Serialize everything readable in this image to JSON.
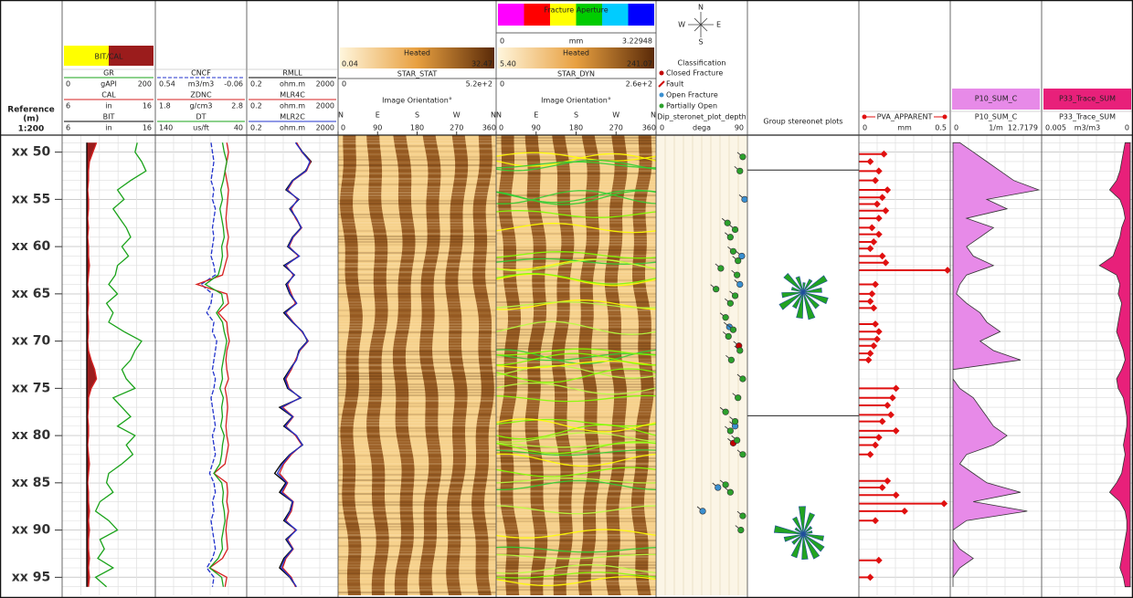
{
  "chart_data": {
    "type": "well-log",
    "reference_label": "Reference",
    "unit_label": "(m)",
    "scale_label": "1:200",
    "ylim": [
      48.2,
      96.9
    ],
    "yticks": [
      {
        "value": 50,
        "label": "xx 50"
      },
      {
        "value": 55,
        "label": "xx 55"
      },
      {
        "value": 60,
        "label": "xx 60"
      },
      {
        "value": 65,
        "label": "xx 65"
      },
      {
        "value": 70,
        "label": "xx 70"
      },
      {
        "value": 75,
        "label": "xx 75"
      },
      {
        "value": 80,
        "label": "xx 80"
      },
      {
        "value": 85,
        "label": "xx 85"
      },
      {
        "value": 90,
        "label": "xx 90"
      },
      {
        "value": 95,
        "label": "xx 95"
      }
    ],
    "depths": [
      49,
      50,
      51,
      52,
      53,
      54,
      55,
      56,
      57,
      58,
      59,
      60,
      61,
      62,
      63,
      64,
      65,
      66,
      67,
      68,
      69,
      70,
      71,
      72,
      73,
      74,
      75,
      76,
      77,
      78,
      79,
      80,
      81,
      82,
      83,
      84,
      85,
      86,
      87,
      88,
      89,
      90,
      91,
      92,
      93,
      94,
      95,
      96
    ],
    "tracks": [
      {
        "type": "line",
        "fill": {
          "label": "BIT/CAL",
          "colors": [
            "#ffff00",
            "#9b1c1c"
          ]
        },
        "curves": [
          {
            "name": "GR",
            "unit": "gAPI",
            "xlim": [
              0,
              200
            ],
            "color": "#1aa31a",
            "values": [
              165,
              160,
              175,
              185,
              150,
              120,
              135,
              110,
              125,
              140,
              150,
              130,
              145,
              120,
              115,
              100,
              120,
              95,
              110,
              100,
              135,
              175,
              160,
              150,
              130,
              140,
              160,
              110,
              130,
              150,
              120,
              160,
              140,
              155,
              130,
              100,
              95,
              110,
              80,
              70,
              100,
              120,
              80,
              90,
              75,
              110,
              70,
              95
            ]
          },
          {
            "name": "CAL",
            "unit": "in",
            "xlim": [
              6,
              16
            ],
            "color": "#d62020",
            "values": [
              9.6,
              9.2,
              8.8,
              8.7,
              8.7,
              8.6,
              8.7,
              8.7,
              8.6,
              8.7,
              8.6,
              8.7,
              8.7,
              8.8,
              8.7,
              8.6,
              8.7,
              8.7,
              8.6,
              8.7,
              8.7,
              8.6,
              8.7,
              9.0,
              9.4,
              9.6,
              9.0,
              8.7,
              8.7,
              8.6,
              8.7,
              8.7,
              8.6,
              8.7,
              8.8,
              8.7,
              8.6,
              8.7,
              8.7,
              8.8,
              8.7,
              8.8,
              8.7,
              8.7,
              8.8,
              8.7,
              8.8,
              8.7
            ]
          },
          {
            "name": "BIT",
            "unit": "in",
            "xlim": [
              6,
              16
            ],
            "color": "#000000",
            "values": [
              8.5,
              8.5,
              8.5,
              8.5,
              8.5,
              8.5,
              8.5,
              8.5,
              8.5,
              8.5,
              8.5,
              8.5,
              8.5,
              8.5,
              8.5,
              8.5,
              8.5,
              8.5,
              8.5,
              8.5,
              8.5,
              8.5,
              8.5,
              8.5,
              8.5,
              8.5,
              8.5,
              8.5,
              8.5,
              8.5,
              8.5,
              8.5,
              8.5,
              8.5,
              8.5,
              8.5,
              8.5,
              8.5,
              8.5,
              8.5,
              8.5,
              8.5,
              8.5,
              8.5,
              8.5,
              8.5,
              8.5,
              8.5
            ]
          }
        ]
      },
      {
        "type": "line",
        "curves": [
          {
            "name": "CNCF",
            "unit": "m3/m3",
            "xlim": [
              0.54,
              -0.06
            ],
            "color": "#2233cc",
            "dashed": true,
            "values": [
              0.17,
              0.16,
              0.15,
              0.16,
              0.17,
              0.15,
              0.16,
              0.14,
              0.15,
              0.16,
              0.15,
              0.16,
              0.17,
              0.15,
              0.14,
              0.24,
              0.16,
              0.17,
              0.2,
              0.15,
              0.16,
              0.13,
              0.14,
              0.15,
              0.16,
              0.14,
              0.15,
              0.17,
              0.16,
              0.15,
              0.14,
              0.16,
              0.15,
              0.14,
              0.16,
              0.18,
              0.15,
              0.14,
              0.16,
              0.15,
              0.17,
              0.16,
              0.15,
              0.14,
              0.16,
              0.2,
              0.15,
              0.16
            ]
          },
          {
            "name": "ZDNC",
            "unit": "g/cm3",
            "xlim": [
              1.8,
              2.8
            ],
            "color": "#d62020",
            "values": [
              2.6,
              2.62,
              2.6,
              2.58,
              2.6,
              2.62,
              2.61,
              2.6,
              2.59,
              2.6,
              2.62,
              2.6,
              2.61,
              2.58,
              2.55,
              2.25,
              2.6,
              2.62,
              2.5,
              2.6,
              2.61,
              2.63,
              2.6,
              2.59,
              2.6,
              2.62,
              2.58,
              2.6,
              2.61,
              2.6,
              2.59,
              2.6,
              2.62,
              2.6,
              2.58,
              2.45,
              2.6,
              2.61,
              2.6,
              2.62,
              2.6,
              2.59,
              2.6,
              2.61,
              2.55,
              2.4,
              2.6,
              2.58
            ]
          },
          {
            "name": "DT",
            "unit": "us/ft",
            "xlim": [
              140,
              40
            ],
            "color": "#1aa31a",
            "values": [
              65,
              63,
              60,
              62,
              64,
              67,
              65,
              68,
              66,
              64,
              63,
              66,
              65,
              67,
              70,
              85,
              66,
              64,
              72,
              65,
              63,
              60,
              62,
              64,
              66,
              65,
              68,
              64,
              66,
              65,
              67,
              63,
              65,
              66,
              68,
              75,
              66,
              64,
              65,
              63,
              62,
              64,
              66,
              65,
              70,
              80,
              66,
              64
            ]
          }
        ]
      },
      {
        "type": "line",
        "log": true,
        "curves": [
          {
            "name": "RMLL",
            "unit": "ohm.m",
            "xlim": [
              0.2,
              2000
            ],
            "color": "#000000",
            "values": [
              30,
              60,
              150,
              80,
              20,
              10,
              40,
              15,
              30,
              50,
              20,
              12,
              40,
              8,
              25,
              10,
              15,
              30,
              8,
              20,
              60,
              100,
              40,
              30,
              15,
              8,
              12,
              50,
              5,
              20,
              8,
              30,
              60,
              15,
              6,
              3,
              10,
              5,
              20,
              15,
              8,
              30,
              10,
              20,
              8,
              5,
              15,
              30
            ]
          },
          {
            "name": "MLR4C",
            "unit": "ohm.m",
            "xlim": [
              0.2,
              2000
            ],
            "color": "#d62020",
            "values": [
              32,
              55,
              140,
              90,
              22,
              12,
              35,
              18,
              28,
              55,
              22,
              14,
              38,
              10,
              22,
              12,
              18,
              28,
              10,
              22,
              55,
              110,
              45,
              28,
              18,
              10,
              14,
              45,
              7,
              22,
              10,
              28,
              55,
              18,
              8,
              5,
              12,
              7,
              22,
              18,
              10,
              28,
              12,
              22,
              10,
              7,
              18,
              28
            ]
          },
          {
            "name": "MLR2C",
            "unit": "ohm.m",
            "xlim": [
              0.2,
              2000
            ],
            "color": "#2233cc",
            "values": [
              28,
              58,
              130,
              85,
              21,
              11,
              38,
              16,
              31,
              52,
              21,
              13,
              42,
              9,
              24,
              11,
              16,
              32,
              9,
              21,
              58,
              105,
              42,
              31,
              16,
              9,
              13,
              48,
              6,
              21,
              9,
              31,
              58,
              16,
              7,
              4,
              11,
              6,
              21,
              16,
              9,
              31,
              11,
              21,
              9,
              6,
              16,
              31
            ]
          }
        ]
      },
      {
        "type": "image",
        "title": "STAR_STAT",
        "colorbar": {
          "label": "Heated",
          "min": 0.04,
          "max": 32.47,
          "colors": [
            "#fff6dc",
            "#e8a040",
            "#5a2a08"
          ]
        },
        "scale": [
          0,
          {
            "value": 520,
            "label": "5.2e+2"
          }
        ],
        "orientation_title": "Image Orientation°",
        "orientation_labels": [
          "N",
          "E",
          "S",
          "W",
          "N"
        ],
        "orientation_ticks": [
          0,
          90,
          180,
          270,
          360
        ]
      },
      {
        "type": "image",
        "title": "STAR_DYN",
        "aperture": {
          "label": "Fracture Aperture",
          "unit": "mm",
          "min": 0,
          "max": 3.22948,
          "colors": [
            "#ff00ff",
            "#ff0000",
            "#ffff00",
            "#00cc00",
            "#00ccff",
            "#0000ff"
          ]
        },
        "colorbar": {
          "label": "Heated",
          "min": {
            "value": 5.4,
            "label": "5.40"
          },
          "max": 241.07,
          "colors": [
            "#fff6dc",
            "#e8a040",
            "#5a2a08"
          ]
        },
        "scale": [
          0,
          {
            "value": 260,
            "label": "2.6e+2"
          }
        ],
        "orientation_title": "Image Orientation°",
        "orientation_labels": [
          "N",
          "E",
          "S",
          "W",
          "N"
        ],
        "orientation_ticks": [
          0,
          90,
          180,
          270,
          360
        ]
      },
      {
        "type": "scatter",
        "compass": [
          "N",
          "E",
          "S",
          "W"
        ],
        "legend_title": "Classification",
        "title": "Dip_steronet_plot_depth",
        "unit": "dega",
        "xlim": [
          0,
          90
        ],
        "series": [
          {
            "name": "Closed Fracture",
            "color": "#c00000",
            "depths": [
              70.5,
              80.8
            ],
            "values": [
              84,
              78
            ]
          },
          {
            "name": "Fault",
            "color": "#d01010",
            "depths": [],
            "values": []
          },
          {
            "name": "Open Fracture",
            "color": "#3a8fd0",
            "depths": [
              55,
              61,
              64,
              68.5,
              79,
              85.5,
              88
            ],
            "values": [
              90,
              87,
              85,
              74,
              80,
              62,
              46
            ]
          },
          {
            "name": "Partially Open",
            "color": "#2ca02c",
            "depths": [
              50.5,
              52,
              57.5,
              58.2,
              59,
              60.5,
              61.5,
              62.3,
              63,
              64.5,
              65.2,
              66,
              67.5,
              68.8,
              69.5,
              71,
              72,
              74,
              76,
              77.5,
              78.5,
              79.5,
              80.5,
              82,
              85.2,
              86,
              88.5,
              90
            ],
            "values": [
              88,
              85,
              72,
              80,
              75,
              78,
              83,
              65,
              82,
              60,
              80,
              75,
              70,
              78,
              73,
              85,
              76,
              88,
              83,
              70,
              80,
              75,
              82,
              88,
              70,
              75,
              88,
              86
            ]
          }
        ]
      },
      {
        "type": "rose",
        "title": "Group stereonet plots",
        "zone_tops": [
          51.9,
          77.9
        ]
      },
      {
        "type": "bar",
        "name": "PVA_APPARENT",
        "unit": "mm",
        "xlim": [
          0,
          0.5
        ],
        "color": "#e01010",
        "depths": [
          50.2,
          51,
          52,
          53,
          54,
          54.8,
          55.5,
          56.2,
          57,
          58,
          58.7,
          59.5,
          60.2,
          61,
          61.7,
          62.5,
          64,
          65,
          65.8,
          66.5,
          68.2,
          69,
          69.8,
          70.5,
          71.3,
          72,
          75,
          76,
          76.8,
          77.8,
          78.5,
          79.5,
          80.2,
          81,
          82,
          84.8,
          85.5,
          86.3,
          87.2,
          88,
          89,
          93.2,
          95
        ],
        "values": [
          0.13,
          0.05,
          0.1,
          0.08,
          0.15,
          0.12,
          0.09,
          0.14,
          0.1,
          0.06,
          0.1,
          0.07,
          0.05,
          0.12,
          0.14,
          0.5,
          0.08,
          0.06,
          0.05,
          0.07,
          0.08,
          0.1,
          0.09,
          0.07,
          0.05,
          0.04,
          0.2,
          0.18,
          0.15,
          0.17,
          0.12,
          0.2,
          0.1,
          0.08,
          0.05,
          0.15,
          0.12,
          0.2,
          0.48,
          0.25,
          0.08,
          0.1,
          0.05
        ]
      },
      {
        "type": "area",
        "name": "P10_SUM_C",
        "unit": "1/m",
        "xlim": [
          0,
          12.7179
        ],
        "color": "#e78ae8",
        "values": [
          1,
          3,
          5,
          7,
          9,
          12.7,
          5,
          8,
          2,
          6,
          4,
          2,
          3,
          6,
          2,
          1,
          0.5,
          2,
          4,
          5,
          7,
          4,
          6,
          10,
          0,
          0,
          1,
          3,
          4,
          5,
          6,
          8,
          6,
          2,
          1,
          3,
          5,
          10,
          3,
          11,
          2,
          0,
          0,
          1,
          3,
          1,
          0,
          0
        ]
      },
      {
        "type": "area",
        "name": "P33_Trace_SUM",
        "unit": "m3/m3",
        "xlim": [
          0.005,
          0
        ],
        "color": "#e8207a",
        "values": [
          0.0003,
          0.0004,
          0.0005,
          0.0006,
          0.0008,
          0.0012,
          0.0006,
          0.0004,
          0.0003,
          0.0005,
          0.0006,
          0.0008,
          0.001,
          0.0018,
          0.0008,
          0.0006,
          0.0007,
          0.0005,
          0.0006,
          0.0007,
          0.0008,
          0.0006,
          0.0004,
          0.0003,
          0.0005,
          0.0008,
          0.0007,
          0.0004,
          0.0003,
          0.0002,
          0.0002,
          0.0003,
          0.0004,
          0.0003,
          0.0004,
          0.0005,
          0.0008,
          0.0012,
          0.0006,
          0.0003,
          0.0002,
          0.0002,
          0.0003,
          0.0004,
          0.0005,
          0.0006,
          0.0004,
          0.0003
        ]
      }
    ]
  }
}
